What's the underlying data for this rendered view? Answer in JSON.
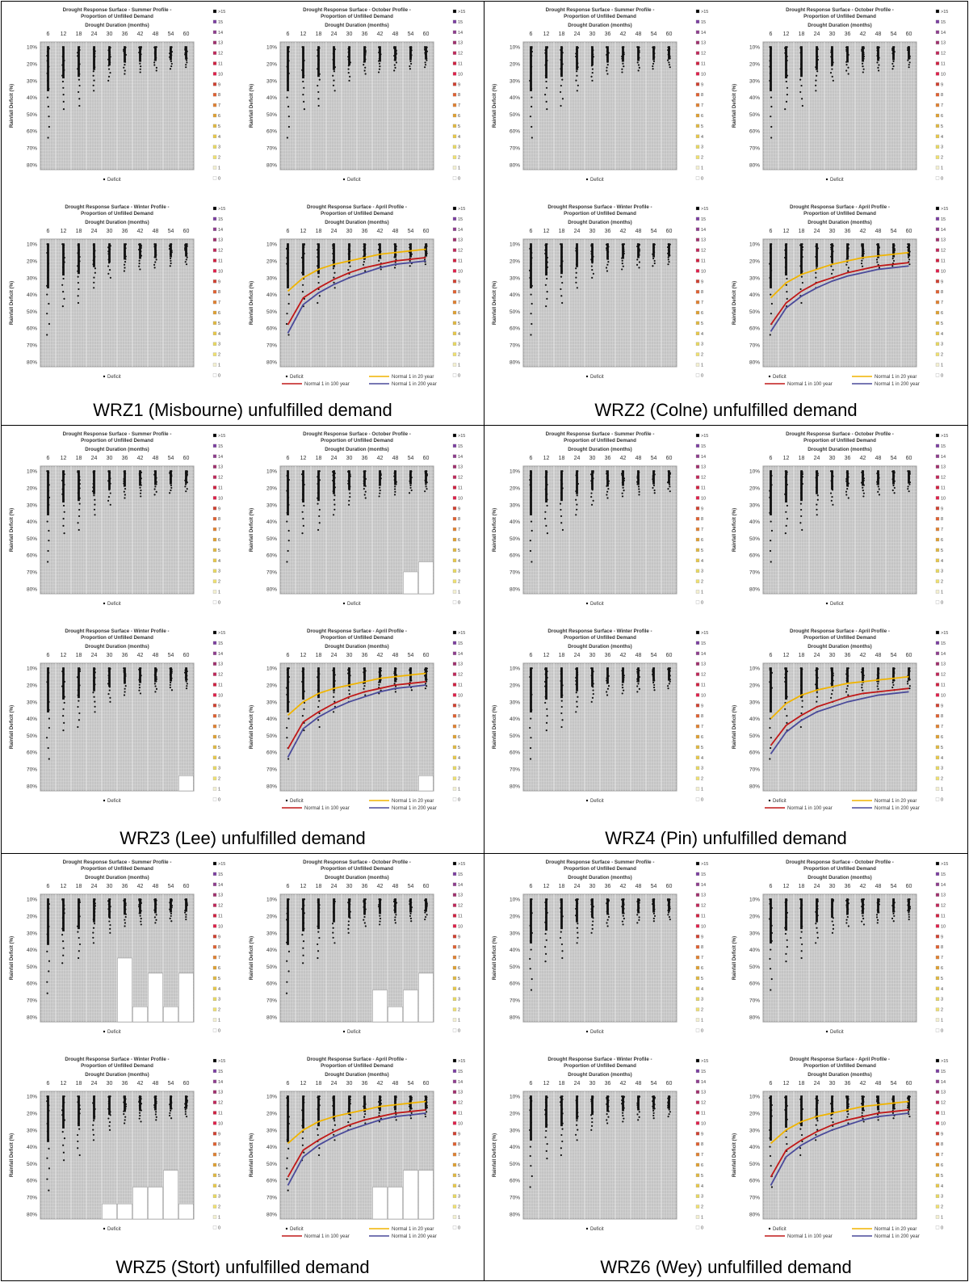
{
  "captions": [
    "WRZ1 (Misbourne) unfulfilled demand",
    "WRZ2 (Colne) unfulfilled demand",
    "WRZ3 (Lee) unfulfilled demand",
    "WRZ4 (Pin) unfulfilled demand",
    "WRZ5 (Stort) unfulfilled demand",
    "WRZ6 (Wey) unfulfilled demand"
  ],
  "panel_titles": {
    "summer": [
      "Drought Response Surface - Summer Profile -",
      "Proportion of Unfilled Demand"
    ],
    "october": [
      "Drought Response Surface - October Profile -",
      "Proportion of Unfilled Demand"
    ],
    "winter": [
      "Drought Response Surface - Winter Profile -",
      "Proportion of Unfilled Demand"
    ],
    "april": [
      "Drought Response Surface - April Profile -",
      "Proportion of Unfilled Demand"
    ]
  },
  "axis": {
    "x_title": "Drought Duration (months)",
    "x_ticks": [
      "6",
      "12",
      "18",
      "24",
      "30",
      "36",
      "42",
      "48",
      "54",
      "60"
    ],
    "y_title": "Rainfall Deficit (%)",
    "y_ticks": [
      "10%",
      "20%",
      "30%",
      "40%",
      "50%",
      "60%",
      "70%",
      "80%"
    ]
  },
  "legend_scale": [
    ">15",
    "15",
    "14",
    "13",
    "12",
    "11",
    "10",
    "9",
    "8",
    "7",
    "6",
    "5",
    "4",
    "3",
    "2",
    "1",
    "0"
  ],
  "legend_scale_colors": [
    "#000000",
    "#7b3fa0",
    "#8e3e8e",
    "#a0306e",
    "#c0285a",
    "#d02040",
    "#e0204a",
    "#d04030",
    "#e06030",
    "#e08030",
    "#e0a030",
    "#e0b840",
    "#e8c848",
    "#e8d860",
    "#f0e070",
    "#f4f0d0",
    "#ffffff"
  ],
  "series_labels": {
    "deficit": "Deficit",
    "n20": "Normal 1 in 20 year",
    "n100": "Normal 1 in 100 year",
    "n200": "Normal 1 in 200 year"
  },
  "series_colors": {
    "n20": "#f0b400",
    "n100": "#c01818",
    "n200": "#4a4a9a"
  },
  "chart_data": [
    {
      "type": "scatter",
      "zone": "WRZ1 (Misbourne)",
      "panels": [
        "Summer",
        "October",
        "Winter",
        "April"
      ],
      "x": [
        6,
        12,
        18,
        24,
        30,
        36,
        42,
        48,
        54,
        60
      ],
      "xlabel": "Drought Duration (months)",
      "ylabel": "Rainfall Deficit (%)",
      "ylim": [
        10,
        80
      ],
      "deficit_max_depth_pct": [
        64,
        47,
        45,
        36,
        30,
        26,
        25,
        24,
        23,
        22
      ],
      "april_lines": {
        "n20": [
          38,
          30,
          25,
          22,
          20,
          18,
          16,
          15,
          14,
          13
        ],
        "n100": [
          58,
          42,
          36,
          31,
          27,
          24,
          22,
          20,
          19,
          18
        ],
        "n200": [
          63,
          46,
          39,
          34,
          30,
          27,
          24,
          22,
          21,
          20
        ]
      },
      "white_bars": []
    },
    {
      "type": "scatter",
      "zone": "WRZ2 (Colne)",
      "panels": [
        "Summer",
        "October",
        "Winter",
        "April"
      ],
      "x": [
        6,
        12,
        18,
        24,
        30,
        36,
        42,
        48,
        54,
        60
      ],
      "xlabel": "Drought Duration (months)",
      "ylabel": "Rainfall Deficit (%)",
      "ylim": [
        10,
        80
      ],
      "deficit_max_depth_pct": [
        64,
        47,
        45,
        36,
        30,
        26,
        25,
        24,
        23,
        22
      ],
      "april_lines": {
        "n20": [
          42,
          33,
          28,
          25,
          22,
          20,
          18,
          17,
          16,
          15
        ],
        "n100": [
          58,
          45,
          38,
          33,
          30,
          27,
          25,
          23,
          22,
          21
        ],
        "n200": [
          62,
          48,
          41,
          36,
          32,
          29,
          27,
          25,
          24,
          23
        ]
      },
      "white_bars": []
    },
    {
      "type": "scatter",
      "zone": "WRZ3 (Lee)",
      "panels": [
        "Summer",
        "October",
        "Winter",
        "April"
      ],
      "x": [
        6,
        12,
        18,
        24,
        30,
        36,
        42,
        48,
        54,
        60
      ],
      "xlabel": "Drought Duration (months)",
      "ylabel": "Rainfall Deficit (%)",
      "ylim": [
        10,
        80
      ],
      "deficit_max_depth_pct": [
        64,
        47,
        45,
        36,
        30,
        26,
        25,
        24,
        23,
        22
      ],
      "april_lines": {
        "n20": [
          38,
          30,
          25,
          22,
          20,
          18,
          16,
          15,
          14,
          13
        ],
        "n100": [
          58,
          42,
          36,
          31,
          27,
          24,
          22,
          20,
          19,
          18
        ],
        "n200": [
          63,
          46,
          39,
          34,
          30,
          27,
          24,
          22,
          21,
          20
        ]
      },
      "white_bars": [
        {
          "panel": "October",
          "x": 54,
          "from_pct": 70
        },
        {
          "panel": "October",
          "x": 60,
          "from_pct": 64
        },
        {
          "panel": "Winter",
          "x": 60,
          "from_pct": 74
        },
        {
          "panel": "April",
          "x": 60,
          "from_pct": 74
        }
      ]
    },
    {
      "type": "scatter",
      "zone": "WRZ4 (Pin)",
      "panels": [
        "Summer",
        "October",
        "Winter",
        "April"
      ],
      "x": [
        6,
        12,
        18,
        24,
        30,
        36,
        42,
        48,
        54,
        60
      ],
      "xlabel": "Drought Duration (months)",
      "ylabel": "Rainfall Deficit (%)",
      "ylim": [
        10,
        80
      ],
      "deficit_max_depth_pct": [
        64,
        47,
        45,
        36,
        30,
        26,
        25,
        24,
        23,
        22
      ],
      "april_lines": {
        "n20": [
          40,
          31,
          26,
          23,
          21,
          19,
          18,
          17,
          16,
          15
        ],
        "n100": [
          56,
          44,
          38,
          33,
          30,
          27,
          25,
          24,
          23,
          22
        ],
        "n200": [
          61,
          48,
          41,
          36,
          33,
          30,
          28,
          26,
          25,
          24
        ]
      },
      "white_bars": []
    },
    {
      "type": "scatter",
      "zone": "WRZ5 (Stort)",
      "panels": [
        "Summer",
        "October",
        "Winter",
        "April"
      ],
      "x": [
        6,
        12,
        18,
        24,
        30,
        36,
        42,
        48,
        54,
        60
      ],
      "xlabel": "Drought Duration (months)",
      "ylabel": "Rainfall Deficit (%)",
      "ylim": [
        10,
        80
      ],
      "deficit_max_depth_pct": [
        66,
        48,
        45,
        36,
        30,
        26,
        25,
        24,
        23,
        22
      ],
      "april_lines": {
        "n20": [
          38,
          30,
          25,
          22,
          20,
          18,
          16,
          15,
          14,
          13
        ],
        "n100": [
          58,
          42,
          36,
          31,
          27,
          24,
          22,
          20,
          19,
          18
        ],
        "n200": [
          63,
          46,
          39,
          34,
          30,
          27,
          24,
          22,
          21,
          20
        ]
      },
      "white_bars": [
        {
          "panel": "Summer",
          "x": 36,
          "from_pct": 45
        },
        {
          "panel": "Summer",
          "x": 42,
          "from_pct": 74
        },
        {
          "panel": "Summer",
          "x": 48,
          "from_pct": 54
        },
        {
          "panel": "Summer",
          "x": 54,
          "from_pct": 74
        },
        {
          "panel": "Summer",
          "x": 60,
          "from_pct": 54
        },
        {
          "panel": "October",
          "x": 42,
          "from_pct": 64
        },
        {
          "panel": "October",
          "x": 48,
          "from_pct": 74
        },
        {
          "panel": "October",
          "x": 54,
          "from_pct": 64
        },
        {
          "panel": "October",
          "x": 60,
          "from_pct": 54
        },
        {
          "panel": "Winter",
          "x": 30,
          "from_pct": 74
        },
        {
          "panel": "Winter",
          "x": 36,
          "from_pct": 74
        },
        {
          "panel": "Winter",
          "x": 42,
          "from_pct": 64
        },
        {
          "panel": "Winter",
          "x": 48,
          "from_pct": 64
        },
        {
          "panel": "Winter",
          "x": 54,
          "from_pct": 54
        },
        {
          "panel": "Winter",
          "x": 60,
          "from_pct": 74
        },
        {
          "panel": "April",
          "x": 42,
          "from_pct": 64
        },
        {
          "panel": "April",
          "x": 48,
          "from_pct": 64
        },
        {
          "panel": "April",
          "x": 54,
          "from_pct": 54
        },
        {
          "panel": "April",
          "x": 60,
          "from_pct": 54
        }
      ]
    },
    {
      "type": "scatter",
      "zone": "WRZ6 (Wey)",
      "panels": [
        "Summer",
        "October",
        "Winter",
        "April"
      ],
      "x": [
        6,
        12,
        18,
        24,
        30,
        36,
        42,
        48,
        54,
        60
      ],
      "xlabel": "Drought Duration (months)",
      "ylabel": "Rainfall Deficit (%)",
      "ylim": [
        10,
        80
      ],
      "deficit_max_depth_pct": [
        64,
        47,
        45,
        36,
        30,
        26,
        25,
        24,
        23,
        22
      ],
      "april_lines": {
        "n20": [
          38,
          30,
          25,
          22,
          20,
          18,
          16,
          15,
          14,
          13
        ],
        "n100": [
          58,
          42,
          36,
          31,
          27,
          24,
          22,
          20,
          19,
          18
        ],
        "n200": [
          63,
          46,
          39,
          34,
          30,
          27,
          24,
          22,
          21,
          20
        ]
      },
      "white_bars": []
    }
  ]
}
